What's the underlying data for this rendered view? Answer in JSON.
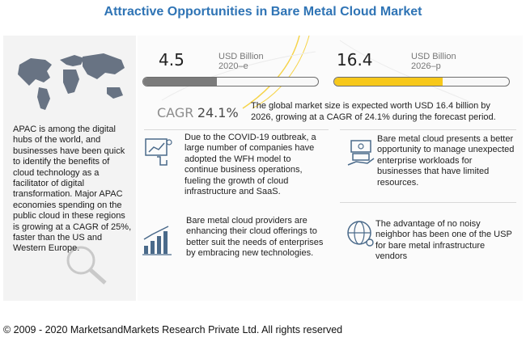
{
  "title": "Attractive Opportunities in Bare Metal Cloud Market",
  "left_text": "APAC is among the digital hubs of the world, and businesses have been quick to identify the benefits of cloud technology as a facilitator of digital transformation. Major APAC economies spending on the public cloud in these regions is growing at a CAGR of 25%, faster than the US and Western Europe.",
  "market": {
    "start": {
      "value": "4.5",
      "unit": "USD Billion",
      "year": "2020–e",
      "fill_fraction": 0.42
    },
    "end": {
      "value": "16.4",
      "unit": "USD Billion",
      "year": "2026–p",
      "fill_fraction": 0.62
    },
    "cagr_label": "CAGR",
    "cagr_value": "24.1%",
    "description": "The global market size is expected worth USD 16.4 billion by 2026, growing at a CAGR of 24.1% during the forecast period."
  },
  "points": [
    {
      "text": "Due to the COVID-19 outbreak, a large number of companies have adopted the WFH model to continue business operations, fueling the growth of cloud infrastructure and SaaS.",
      "icon": "finger-chart-icon"
    },
    {
      "text": "Bare metal cloud presents a better opportunity to manage unexpected enterprise workloads for businesses that have limited resources.",
      "icon": "money-hand-icon"
    },
    {
      "text": "Bare metal cloud providers are enhancing their cloud offerings to better suit the needs of enterprises by embracing new technologies.",
      "icon": "growth-bars-icon"
    },
    {
      "text": "The advantage of no noisy neighbor has been one of the USP for bare metal infrastructure vendors",
      "icon": "globe-network-icon"
    }
  ],
  "colors": {
    "title": "#2f74b5",
    "start_bar": "#7b7b7b",
    "end_bar": "#f7c81a",
    "accent_line": "#f6d44a"
  },
  "footer": "© 2009 - 2020 MarketsandMarkets Research Private Ltd. All rights reserved"
}
